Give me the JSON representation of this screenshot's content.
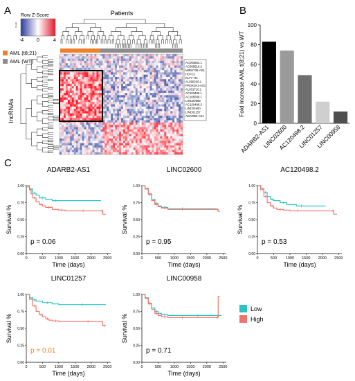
{
  "panel_labels": {
    "a": "A",
    "b": "B",
    "c": "C"
  },
  "colors": {
    "aml_t821": "#f07f2a",
    "aml_wt": "#8c8c8c",
    "low": "#2cc3c3",
    "high": "#f0746a",
    "sig_p": "#f07f2a",
    "heat_low": "#2b3c9c",
    "heat_mid": "#ffffff",
    "heat_high": "#e11b2b",
    "bars": [
      "#000000",
      "#9b9b9b",
      "#6f6f6f",
      "#cfcfcf",
      "#4f4f4f"
    ]
  },
  "heatmap": {
    "legend_title": "Row Z-Score",
    "legend_ticks": [
      "-4",
      "0",
      "4"
    ],
    "legend_count_label": "Count",
    "patients_label": "Patients",
    "groups": [
      {
        "label": "AML (t8;21)",
        "color": "#f07f2a"
      },
      {
        "label": "AML (WT)",
        "color": "#8c8c8c"
      }
    ],
    "row_axis_label": "lncRNAs",
    "highlighted_genes": [
      "AC093562.1",
      "AC008516.2",
      "MIRHT35-AS1",
      "HCFC1",
      "KLF7-IT1",
      "AL590226.1",
      "PRDX2K1-AS1",
      "AL031710.1",
      "AC103405.1",
      "AC105609.1",
      "LINC00958",
      "AC120498.2",
      "LINC02600",
      "LINC01257",
      "ADARB2-AS1"
    ]
  },
  "chart_data": [
    {
      "type": "bar",
      "panel": "B",
      "categories": [
        "ADARB2-AS1",
        "LINC02600",
        "AC120498.2",
        "LINC01257",
        "LINC00958"
      ],
      "values": [
        83,
        74,
        49,
        22,
        12
      ],
      "ylabel": "Fold Increase AML t(8;21) vs WT",
      "ylim": [
        0,
        100
      ],
      "yticks": [
        0,
        20,
        40,
        60,
        80,
        100
      ]
    },
    {
      "type": "line",
      "panel": "C",
      "title": "ADARB2-AS1",
      "xlabel": "Time (days)",
      "ylabel": "Survival %",
      "xlim": [
        0,
        2600
      ],
      "ylim": [
        0,
        1
      ],
      "xticks": [
        0,
        500,
        1000,
        1500,
        2000,
        2500
      ],
      "yticks": [
        "0.00",
        "0.25",
        "0.50",
        "0.75",
        "1.00"
      ],
      "p_label": "p = 0.06",
      "significant": false,
      "series": [
        {
          "name": "Low",
          "x": [
            0,
            100,
            200,
            300,
            400,
            600,
            800,
            1000,
            2300
          ],
          "y": [
            1.0,
            0.95,
            0.89,
            0.86,
            0.82,
            0.8,
            0.78,
            0.78,
            0.78
          ]
        },
        {
          "name": "High",
          "x": [
            0,
            50,
            100,
            150,
            200,
            300,
            400,
            500,
            600,
            800,
            1000,
            1200,
            1500,
            2000,
            2300,
            2350,
            2450
          ],
          "y": [
            1.0,
            0.98,
            0.94,
            0.88,
            0.82,
            0.76,
            0.72,
            0.7,
            0.68,
            0.65,
            0.64,
            0.63,
            0.63,
            0.63,
            0.63,
            0.58,
            0.58
          ]
        }
      ]
    },
    {
      "type": "line",
      "panel": "C",
      "title": "LINC02600",
      "xlabel": "Time (days)",
      "ylabel": "Survival %",
      "xlim": [
        0,
        2600
      ],
      "ylim": [
        0,
        1
      ],
      "xticks": [
        0,
        500,
        1000,
        1500,
        2000,
        2500
      ],
      "yticks": [
        "0.00",
        "0.25",
        "0.50",
        "0.75",
        "1.00"
      ],
      "p_label": "p = 0.95",
      "significant": false,
      "series": [
        {
          "name": "Low",
          "x": [
            0,
            100,
            200,
            300,
            400,
            500,
            600,
            800,
            1000,
            1500,
            2300
          ],
          "y": [
            1.0,
            0.96,
            0.88,
            0.8,
            0.74,
            0.7,
            0.68,
            0.66,
            0.66,
            0.66,
            0.66
          ]
        },
        {
          "name": "High",
          "x": [
            0,
            100,
            200,
            300,
            400,
            500,
            600,
            800,
            1000,
            1500,
            2300,
            2350,
            2400
          ],
          "y": [
            1.0,
            0.95,
            0.87,
            0.78,
            0.72,
            0.69,
            0.67,
            0.65,
            0.65,
            0.65,
            0.65,
            0.62,
            0.62
          ]
        }
      ]
    },
    {
      "type": "line",
      "panel": "C",
      "title": "AC120498.2",
      "xlabel": "Time (days)",
      "ylabel": "Survival %",
      "xlim": [
        0,
        2600
      ],
      "ylim": [
        0,
        1
      ],
      "xticks": [
        0,
        500,
        1000,
        1500,
        2000,
        2500
      ],
      "yticks": [
        "0.00",
        "0.25",
        "0.50",
        "0.75",
        "1.00"
      ],
      "p_label": "p = 0.53",
      "significant": false,
      "series": [
        {
          "name": "Low",
          "x": [
            0,
            100,
            200,
            300,
            400,
            500,
            700,
            900,
            1200,
            1500,
            2100
          ],
          "y": [
            1.0,
            0.96,
            0.9,
            0.84,
            0.8,
            0.78,
            0.75,
            0.72,
            0.7,
            0.7,
            0.7
          ]
        },
        {
          "name": "High",
          "x": [
            0,
            100,
            200,
            300,
            400,
            500,
            600,
            800,
            1000,
            1500,
            2300,
            2350,
            2450
          ],
          "y": [
            1.0,
            0.94,
            0.84,
            0.75,
            0.7,
            0.67,
            0.65,
            0.64,
            0.63,
            0.63,
            0.63,
            0.58,
            0.58
          ]
        }
      ]
    },
    {
      "type": "line",
      "panel": "C",
      "title": "LINC01257",
      "xlabel": "Time (days)",
      "ylabel": "Survival %",
      "xlim": [
        0,
        2600
      ],
      "ylim": [
        0,
        1
      ],
      "xticks": [
        0,
        500,
        1000,
        1500,
        2000,
        2500
      ],
      "yticks": [
        "0.00",
        "0.25",
        "0.50",
        "0.75",
        "1.00"
      ],
      "p_label": "p = 0.01",
      "significant": true,
      "series": [
        {
          "name": "Low",
          "x": [
            0,
            100,
            200,
            300,
            500,
            800,
            1000,
            2450
          ],
          "y": [
            1.0,
            0.95,
            0.92,
            0.9,
            0.88,
            0.86,
            0.85,
            0.85
          ]
        },
        {
          "name": "High",
          "x": [
            0,
            100,
            200,
            300,
            400,
            500,
            600,
            700,
            800,
            1000,
            1500,
            2300,
            2350,
            2450
          ],
          "y": [
            1.0,
            0.93,
            0.83,
            0.75,
            0.7,
            0.67,
            0.64,
            0.62,
            0.61,
            0.6,
            0.6,
            0.6,
            0.54,
            0.54
          ]
        }
      ]
    },
    {
      "type": "line",
      "panel": "C",
      "title": "LINC00958",
      "xlabel": "Time (days)",
      "ylabel": "Survival %",
      "xlim": [
        0,
        2600
      ],
      "ylim": [
        0,
        1
      ],
      "xticks": [
        0,
        500,
        1000,
        1500,
        2000,
        2500
      ],
      "yticks": [
        "0.00",
        "0.25",
        "0.50",
        "0.75",
        "1.00"
      ],
      "p_label": "p = 0.71",
      "significant": false,
      "series": [
        {
          "name": "Low",
          "x": [
            0,
            100,
            200,
            300,
            400,
            500,
            600,
            800,
            1000,
            2450
          ],
          "y": [
            1.0,
            0.95,
            0.87,
            0.8,
            0.75,
            0.72,
            0.7,
            0.69,
            0.69,
            0.69
          ]
        },
        {
          "name": "High",
          "x": [
            0,
            100,
            200,
            300,
            400,
            500,
            600,
            800,
            1000,
            1500,
            2300,
            2350,
            2400
          ],
          "y": [
            1.0,
            0.94,
            0.86,
            0.78,
            0.72,
            0.69,
            0.67,
            0.66,
            0.66,
            0.66,
            0.66,
            0.97,
            0.97
          ]
        }
      ]
    }
  ],
  "km_legend": [
    {
      "label": "Low",
      "color": "#2cc3c3"
    },
    {
      "label": "High",
      "color": "#f0746a"
    }
  ]
}
